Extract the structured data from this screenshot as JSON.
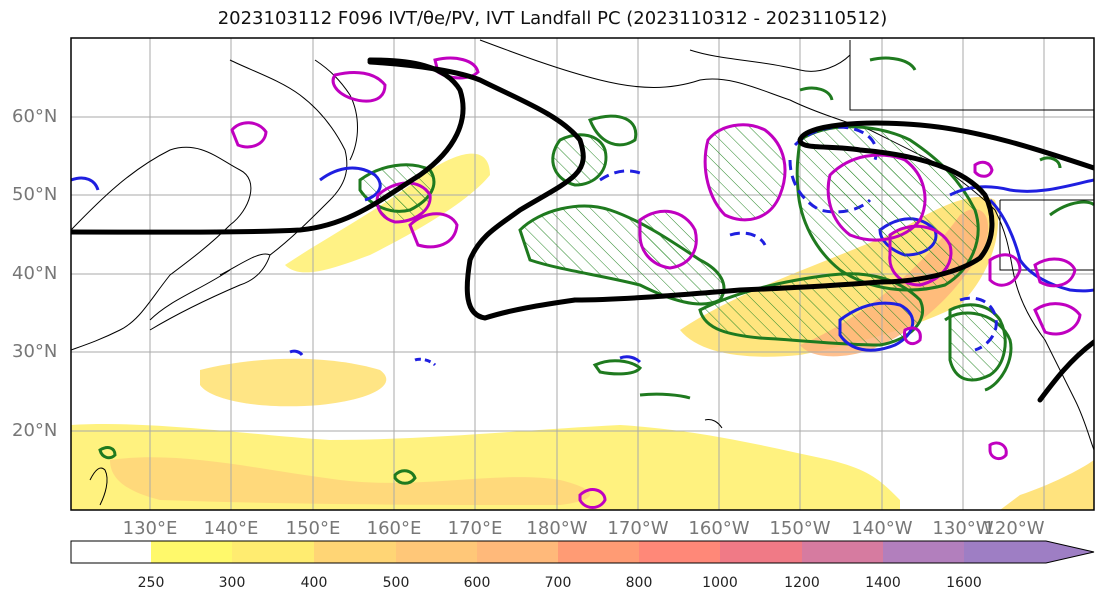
{
  "title": "2023103112 F096 IVT/θe/PV, IVT Landfall PC (2023110312 - 2023110512)",
  "map": {
    "lat_labels": [
      "60°N",
      "50°N",
      "40°N",
      "30°N",
      "20°N"
    ],
    "lon_labels": [
      "130°E",
      "140°E",
      "150°E",
      "160°E",
      "170°E",
      "180°W",
      "170°W",
      "160°W",
      "150°W",
      "140°W",
      "130°W",
      "120°W"
    ],
    "grid": true
  },
  "colorbar": {
    "ticks": [
      "250",
      "300",
      "400",
      "500",
      "600",
      "700",
      "800",
      "1000",
      "1200",
      "1400",
      "1600"
    ],
    "colors": [
      "#ffffff",
      "#fff96b",
      "#ffec70",
      "#ffd575",
      "#ffc778",
      "#ffb97a",
      "#ff9b74",
      "#ff8878",
      "#f07a86",
      "#d67ba0",
      "#b27fbd",
      "#9e7ec4"
    ],
    "extend": "max"
  },
  "legend_colors": {
    "ivt_fill": "#fff06e",
    "pv_contour": "#c000c0",
    "theta_e_contour": "#1f7a1f",
    "landfall_contour": "#1f1fe0",
    "jet_line": "#000000"
  }
}
